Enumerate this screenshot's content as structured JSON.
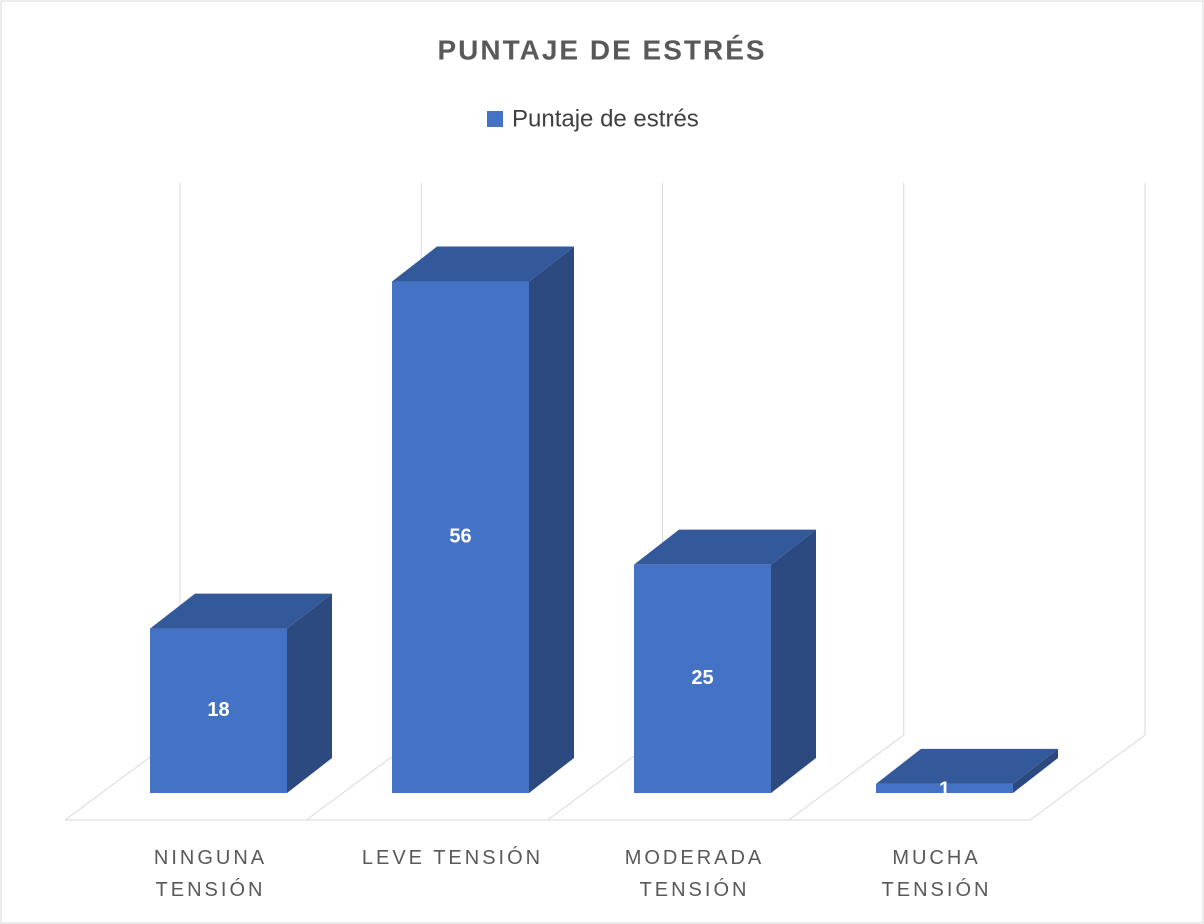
{
  "chart_data": {
    "type": "bar3d",
    "title": "PUNTAJE DE ESTRÉS",
    "categories": [
      "NINGUNA TENSIÓN",
      "LEVE TENSIÓN",
      "MODERADA TENSIÓN",
      "MUCHA TENSIÓN"
    ],
    "series": [
      {
        "name": "Puntaje de estrés",
        "color": "#4472c4",
        "values": [
          18,
          56,
          25,
          1
        ]
      }
    ],
    "ylim": [
      0,
      60
    ],
    "legend": "top"
  }
}
